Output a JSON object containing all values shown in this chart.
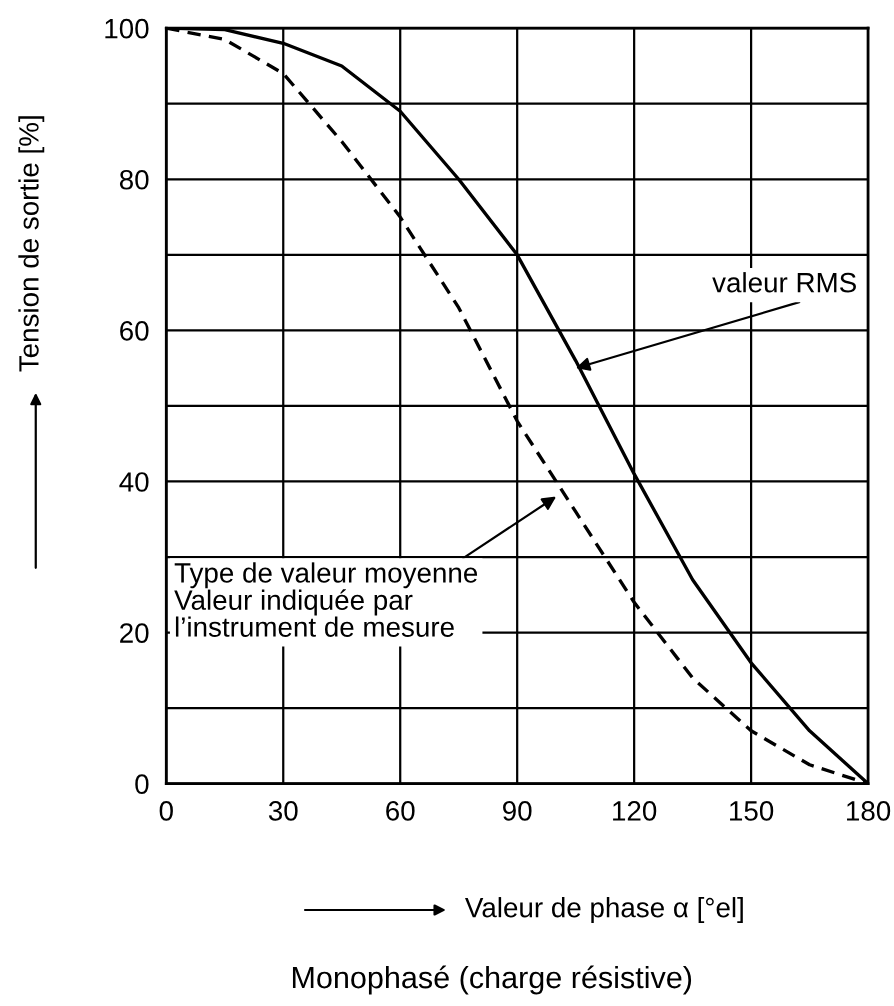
{
  "chart_data": {
    "type": "line",
    "title": "Monophasé (charge résistive)",
    "xlabel": "Valeur de phase α [°el]",
    "ylabel": "Tension de sortie [%]",
    "x": [
      0,
      15,
      30,
      45,
      60,
      75,
      90,
      105,
      120,
      135,
      150,
      165,
      180
    ],
    "series": [
      {
        "color": "#000000",
        "line_style": "solid",
        "values": [
          100,
          99.8,
          98,
          95,
          89,
          80,
          70,
          56,
          41,
          27,
          16,
          7,
          0
        ]
      },
      {
        "color": "#000000",
        "line_style": "dashed",
        "values": [
          100,
          98.5,
          94,
          85,
          75,
          63,
          48,
          36,
          24,
          14,
          7,
          2.5,
          0
        ]
      }
    ],
    "annotations": [
      {
        "text": "valeur RMS",
        "x": 105,
        "y": 55
      },
      {
        "text": "Type de valeur moyenne\nValeur indiquée par\nl’instrument de mesure",
        "x": 100,
        "y": 38
      }
    ],
    "xlim": [
      0,
      180
    ],
    "ylim": [
      0,
      100
    ],
    "xticks": [
      0,
      30,
      60,
      90,
      120,
      150,
      180
    ],
    "yticks": [
      0,
      {
        "value": 10,
        "label": null
      },
      20,
      {
        "value": 30,
        "label": null
      },
      40,
      {
        "value": 50,
        "label": null
      },
      60,
      {
        "value": 70,
        "label": null
      },
      80,
      {
        "value": 90,
        "label": null
      },
      100
    ],
    "grid": true,
    "marker": "none"
  }
}
